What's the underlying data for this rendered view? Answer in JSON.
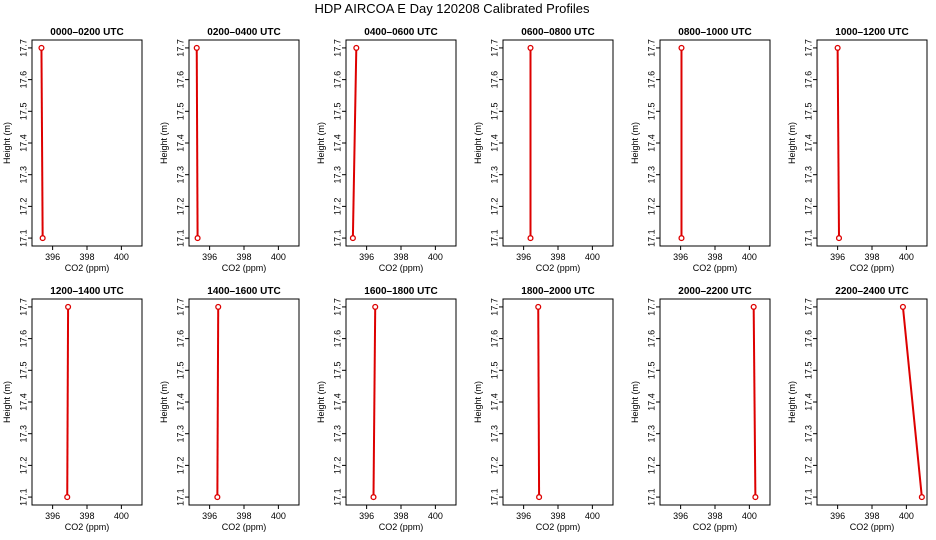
{
  "figure": {
    "title": "HDP AIRCOA E  Day 120208  Calibrated Profiles"
  },
  "colors": {
    "profile": "#dd0000"
  },
  "chart_data": {
    "type": "line",
    "xlabel": "CO2 (ppm)",
    "ylabel": "Height (m)",
    "xlim": [
      394.8,
      401.2
    ],
    "ylim": [
      17.075,
      17.725
    ],
    "xticks": [
      "396",
      "398",
      "400"
    ],
    "yticks": [
      "17.1",
      "17.2",
      "17.3",
      "17.4",
      "17.5",
      "17.6",
      "17.7"
    ],
    "grid": false,
    "panels": [
      {
        "title": "0000–0200 UTC",
        "x": [
          395.35,
          395.42
        ],
        "y": [
          17.7,
          17.1
        ]
      },
      {
        "title": "0200–0400 UTC",
        "x": [
          395.25,
          395.3
        ],
        "y": [
          17.7,
          17.1
        ]
      },
      {
        "title": "0400–0600 UTC",
        "x": [
          395.4,
          395.2
        ],
        "y": [
          17.7,
          17.1
        ]
      },
      {
        "title": "0600–0800 UTC",
        "x": [
          396.4,
          396.4
        ],
        "y": [
          17.7,
          17.1
        ]
      },
      {
        "title": "0800–1000 UTC",
        "x": [
          396.05,
          396.05
        ],
        "y": [
          17.7,
          17.1
        ]
      },
      {
        "title": "1000–1200 UTC",
        "x": [
          396.0,
          396.08
        ],
        "y": [
          17.7,
          17.1
        ]
      },
      {
        "title": "1200–1400 UTC",
        "x": [
          396.9,
          396.85
        ],
        "y": [
          17.7,
          17.1
        ]
      },
      {
        "title": "1400–1600 UTC",
        "x": [
          396.5,
          396.45
        ],
        "y": [
          17.7,
          17.1
        ]
      },
      {
        "title": "1600–1800 UTC",
        "x": [
          396.5,
          396.4
        ],
        "y": [
          17.7,
          17.1
        ]
      },
      {
        "title": "1800–2000 UTC",
        "x": [
          396.85,
          396.9
        ],
        "y": [
          17.7,
          17.1
        ]
      },
      {
        "title": "2000–2200 UTC",
        "x": [
          400.25,
          400.35
        ],
        "y": [
          17.7,
          17.1
        ]
      },
      {
        "title": "2200–2400 UTC",
        "x": [
          399.8,
          400.9
        ],
        "y": [
          17.7,
          17.1
        ]
      }
    ]
  }
}
